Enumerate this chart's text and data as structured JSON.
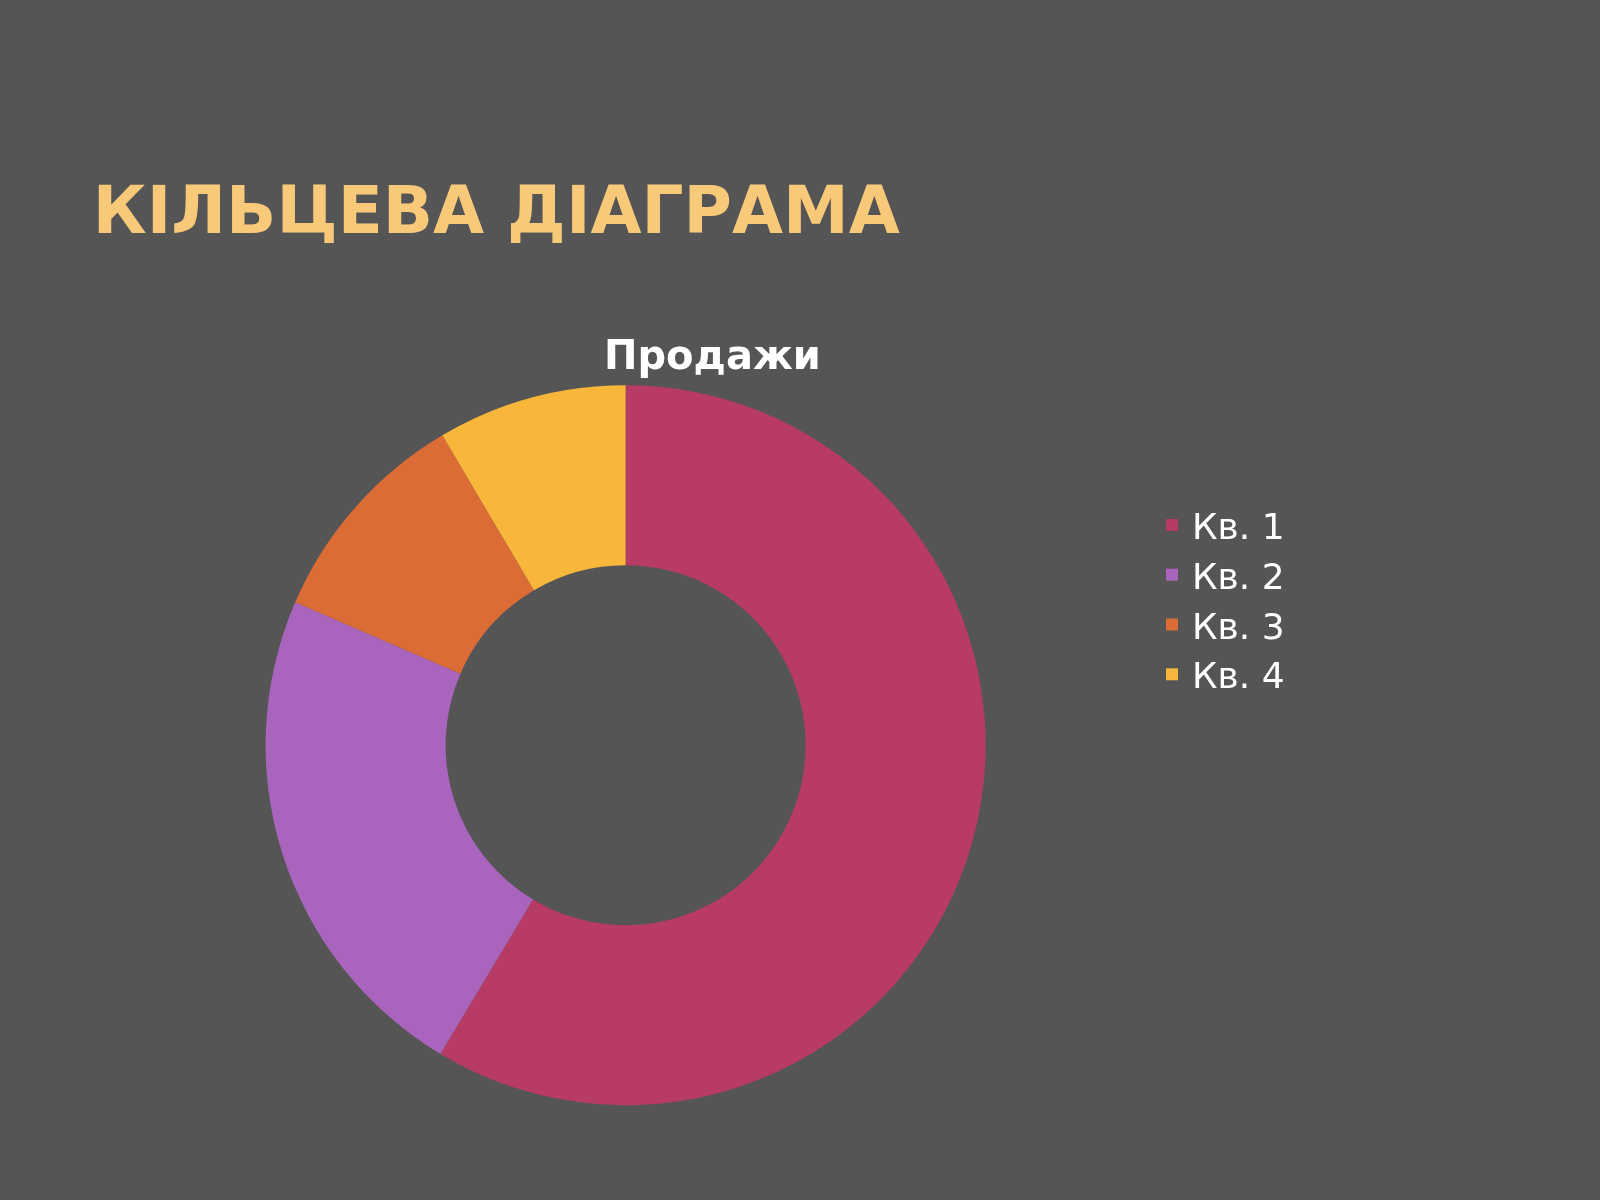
{
  "chart_data": {
    "type": "donut",
    "title": "КІЛЬЦЕВА ДІАГРАМА",
    "subtitle": "Продажи",
    "categories": [
      "Кв. 1",
      "Кв. 2",
      "Кв. 3",
      "Кв. 4"
    ],
    "values": [
      58.6,
      22.9,
      10.0,
      8.5
    ],
    "colors": [
      "#b83b66",
      "#a965bd",
      "#dc6c35",
      "#f8b63a"
    ],
    "legend": "right"
  }
}
